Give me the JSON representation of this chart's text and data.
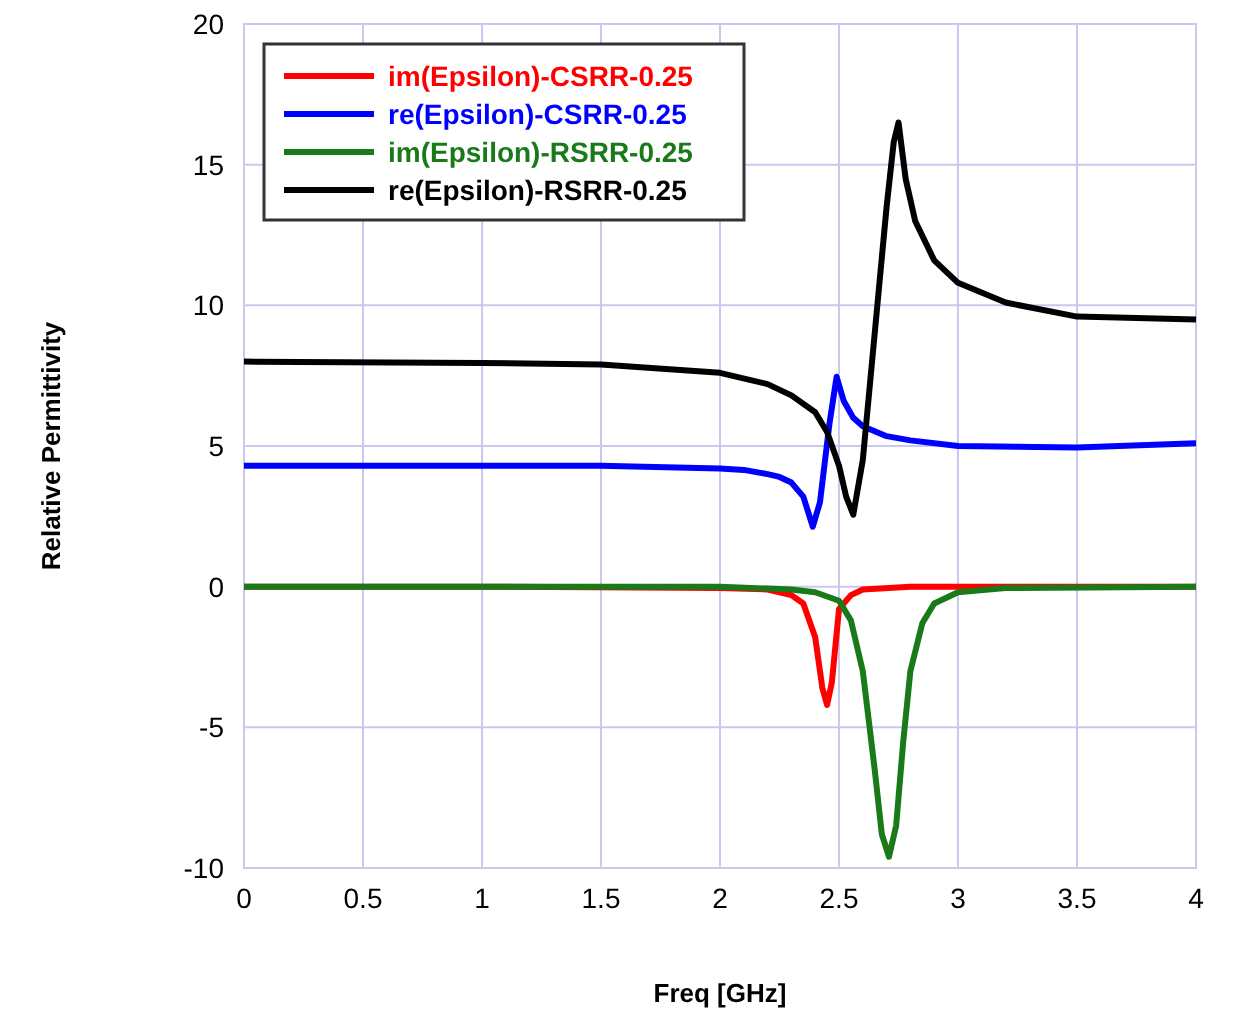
{
  "chart_data": {
    "type": "line",
    "xlabel": "Freq [GHz]",
    "ylabel": "Relative Permittivity",
    "xlim": [
      0,
      4
    ],
    "ylim": [
      -10,
      20
    ],
    "xticks": [
      0,
      0.5,
      1,
      1.5,
      2,
      2.5,
      3,
      3.5,
      4
    ],
    "yticks": [
      -10,
      -5,
      0,
      5,
      10,
      15,
      20
    ],
    "grid": true,
    "legend": "top left",
    "marker": "none",
    "line_style": "solid",
    "series": [
      {
        "name": "im(Epsilon)-CSRR-0.25",
        "color": "#ff0000",
        "x": [
          0,
          1,
          2,
          2.2,
          2.3,
          2.35,
          2.4,
          2.43,
          2.45,
          2.47,
          2.5,
          2.55,
          2.6,
          2.8,
          3,
          4
        ],
        "values": [
          0,
          0,
          -0.05,
          -0.1,
          -0.3,
          -0.6,
          -1.8,
          -3.6,
          -4.2,
          -3.4,
          -0.8,
          -0.3,
          -0.1,
          0,
          0,
          0
        ]
      },
      {
        "name": "re(Epsilon)-CSRR-0.25",
        "color": "#0000ff",
        "x": [
          0,
          1,
          1.5,
          2,
          2.1,
          2.2,
          2.25,
          2.3,
          2.35,
          2.39,
          2.42,
          2.46,
          2.49,
          2.52,
          2.56,
          2.6,
          2.7,
          2.8,
          3,
          3.5,
          4
        ],
        "values": [
          4.3,
          4.3,
          4.3,
          4.2,
          4.15,
          4.0,
          3.9,
          3.7,
          3.2,
          2.13,
          3.0,
          5.8,
          7.46,
          6.6,
          6.0,
          5.7,
          5.35,
          5.2,
          5.0,
          4.95,
          5.1
        ]
      },
      {
        "name": "im(Epsilon)-RSRR-0.25",
        "color": "#1a7a1a",
        "x": [
          0,
          1,
          2,
          2.3,
          2.4,
          2.5,
          2.55,
          2.6,
          2.65,
          2.68,
          2.71,
          2.74,
          2.77,
          2.8,
          2.85,
          2.9,
          3,
          3.2,
          4
        ],
        "values": [
          0,
          0,
          0,
          -0.1,
          -0.2,
          -0.5,
          -1.2,
          -3,
          -6.5,
          -8.8,
          -9.6,
          -8.5,
          -5.5,
          -3,
          -1.3,
          -0.6,
          -0.2,
          -0.05,
          0
        ]
      },
      {
        "name": "re(Epsilon)-RSRR-0.25",
        "color": "#000000",
        "x": [
          0,
          1,
          1.5,
          2,
          2.2,
          2.3,
          2.4,
          2.45,
          2.5,
          2.53,
          2.56,
          2.6,
          2.65,
          2.7,
          2.73,
          2.75,
          2.78,
          2.82,
          2.9,
          3,
          3.2,
          3.5,
          4
        ],
        "values": [
          8,
          7.95,
          7.9,
          7.6,
          7.2,
          6.8,
          6.2,
          5.5,
          4.3,
          3.2,
          2.56,
          4.5,
          9,
          13.5,
          15.8,
          16.5,
          14.5,
          13,
          11.6,
          10.8,
          10.1,
          9.6,
          9.5
        ]
      }
    ]
  }
}
